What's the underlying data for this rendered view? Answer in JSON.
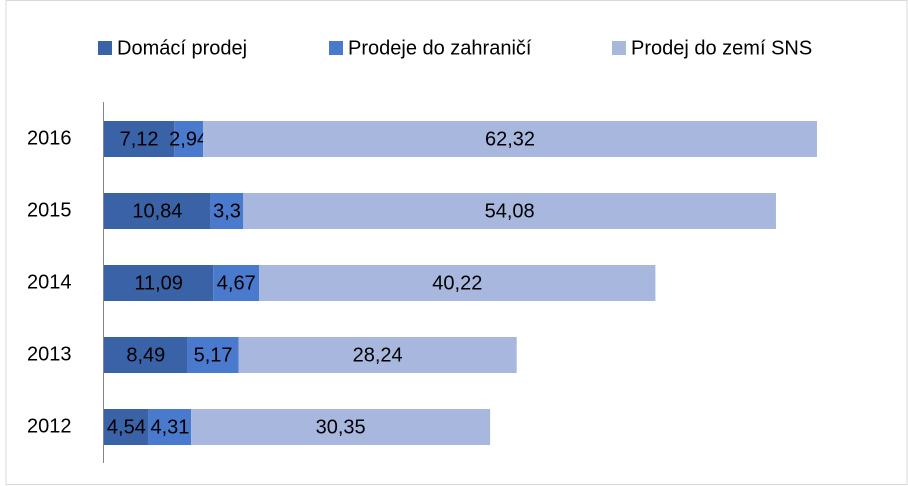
{
  "chart_data": {
    "type": "stacked_barh",
    "categories": [
      "2016",
      "2015",
      "2014",
      "2013",
      "2012"
    ],
    "series": [
      {
        "name": "Domácí prodej",
        "color": "#3a62a7",
        "values": [
          7.12,
          10.84,
          11.09,
          8.49,
          4.54
        ],
        "value_labels": [
          "7,12",
          "10,84",
          "11,09",
          "8,49",
          "4,54"
        ]
      },
      {
        "name": "Prodeje do zahraničí",
        "color": "#4a7acd",
        "values": [
          2.94,
          3.3,
          4.67,
          5.17,
          4.31
        ],
        "value_labels": [
          "2,94",
          "3,3",
          "4,67",
          "5,17",
          "4,31"
        ]
      },
      {
        "name": "Prodej do zemí SNS",
        "color": "#a7b7de",
        "values": [
          62.32,
          54.08,
          40.22,
          28.24,
          30.35
        ],
        "value_labels": [
          "62,32",
          "54,08",
          "40,22",
          "28,24",
          "30,35"
        ]
      }
    ],
    "xlim": [
      0,
      80
    ],
    "legend": "top"
  }
}
